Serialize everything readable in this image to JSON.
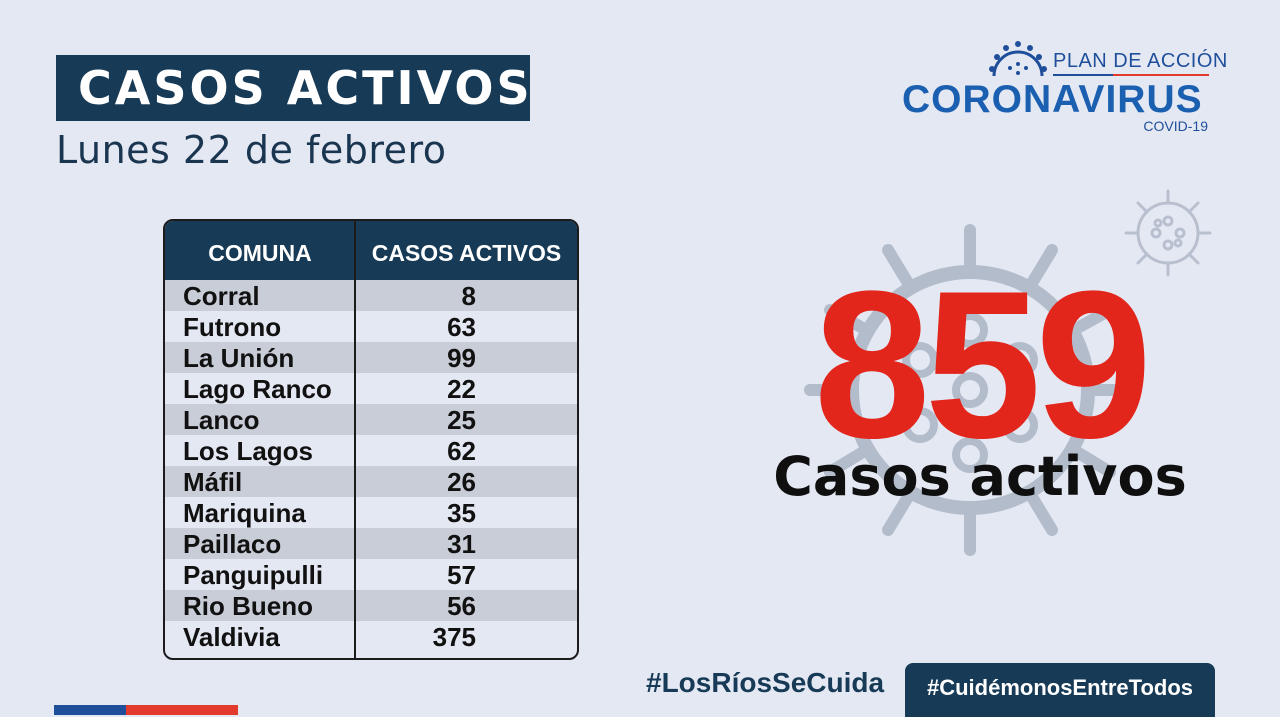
{
  "header": {
    "title": "CASOS ACTIVOS",
    "date": "Lunes 22 de febrero"
  },
  "logo": {
    "plan": "PLAN DE ACCIÓN",
    "main": "CORONAVIRUS",
    "sub": "COVID-19"
  },
  "table": {
    "col_comuna": "COMUNA",
    "col_casos": "CASOS ACTIVOS",
    "rows": [
      {
        "name": "Corral",
        "value": "8"
      },
      {
        "name": "Futrono",
        "value": "63"
      },
      {
        "name": "La Unión",
        "value": "99"
      },
      {
        "name": "Lago Ranco",
        "value": "22"
      },
      {
        "name": "Lanco",
        "value": "25"
      },
      {
        "name": "Los Lagos",
        "value": "62"
      },
      {
        "name": "Máfil",
        "value": "26"
      },
      {
        "name": "Mariquina",
        "value": "35"
      },
      {
        "name": "Paillaco",
        "value": "31"
      },
      {
        "name": "Panguipulli",
        "value": "57"
      },
      {
        "name": "Rio Bueno",
        "value": "56"
      },
      {
        "name": "Valdivia",
        "value": "375"
      }
    ]
  },
  "total": {
    "number": "859",
    "label": "Casos activos"
  },
  "hashtags": {
    "first": "#LosRíosSeCuida",
    "second": "#CuidémonosEntreTodos"
  },
  "colors": {
    "navy": "#173a56",
    "red": "#e2261b",
    "blue": "#1b5fb0",
    "background": "#e4e8f3"
  },
  "icons": [
    "virus-icon"
  ]
}
